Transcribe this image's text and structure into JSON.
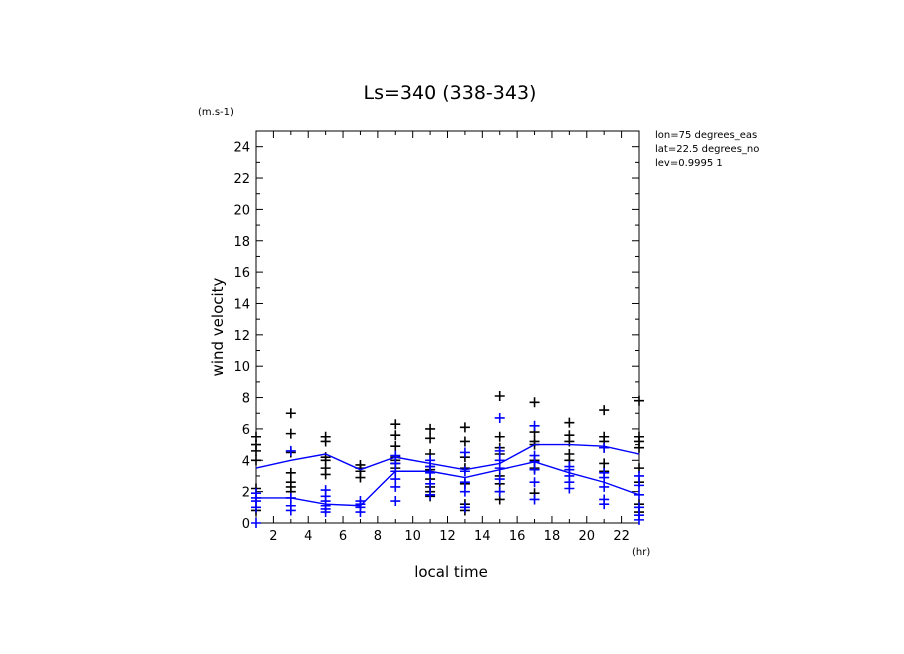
{
  "chart_data": {
    "type": "scatter",
    "title": "Ls=340 (338-343)",
    "xlabel": "local time",
    "ylabel": "wind velocity",
    "x_unit": "(hr)",
    "y_unit": "(m.s-1)",
    "xlim": [
      1,
      23
    ],
    "ylim": [
      0,
      25
    ],
    "x_ticks": [
      2,
      4,
      6,
      8,
      10,
      12,
      14,
      16,
      18,
      20,
      22
    ],
    "y_ticks": [
      0,
      2,
      4,
      6,
      8,
      10,
      12,
      14,
      16,
      18,
      20,
      22,
      24
    ],
    "info_lines": [
      "lon=75 degrees_eas",
      "lat=22.5 degrees_no",
      "lev=0.9995 1"
    ],
    "x": [
      1,
      3,
      5,
      7,
      9,
      11,
      13,
      15,
      17,
      19,
      21,
      23
    ],
    "series": [
      {
        "name": "black samples",
        "color": "#000000",
        "mean_line": [
          3.5,
          4.0,
          4.4,
          3.4,
          4.2,
          3.8,
          3.4,
          3.8,
          5.0,
          5.0,
          4.9,
          4.4
        ],
        "points": [
          [
            0.8,
            2.2,
            4.0,
            4.6,
            5.0,
            5.5
          ],
          [
            2.0,
            2.3,
            2.6,
            3.2,
            4.5,
            5.7,
            7.0
          ],
          [
            3.1,
            3.5,
            4.0,
            4.2,
            5.2,
            5.5
          ],
          [
            2.9,
            3.3,
            3.5,
            3.7
          ],
          [
            3.5,
            3.8,
            4.0,
            4.2,
            4.9,
            5.6,
            6.3
          ],
          [
            1.7,
            2.0,
            2.3,
            2.8,
            3.4,
            3.6,
            4.4,
            5.4,
            6.0
          ],
          [
            0.8,
            1.2,
            2.5,
            3.5,
            4.2,
            5.2,
            6.1
          ],
          [
            1.5,
            2.0,
            2.5,
            3.0,
            4.4,
            4.8,
            5.5,
            8.1
          ],
          [
            1.9,
            3.5,
            4.0,
            5.0,
            5.2,
            5.8,
            7.7
          ],
          [
            4.0,
            4.4,
            5.2,
            5.6,
            6.4
          ],
          [
            3.3,
            3.8,
            4.8,
            5.2,
            5.5,
            7.2
          ],
          [
            0.7,
            1.2,
            2.6,
            3.5,
            4.8,
            5.2,
            5.5,
            7.8
          ]
        ]
      },
      {
        "name": "blue samples",
        "color": "#0000ff",
        "mean_line": [
          1.6,
          1.6,
          1.2,
          1.1,
          3.3,
          3.3,
          2.9,
          3.4,
          3.9,
          3.2,
          2.6,
          1.8
        ],
        "points": [
          [
            0.0,
            1.0,
            1.4,
            1.6,
            1.9
          ],
          [
            0.8,
            1.1,
            1.6,
            4.6
          ],
          [
            0.7,
            0.9,
            1.1,
            1.4,
            1.7,
            2.1
          ],
          [
            0.7,
            1.0,
            1.2,
            1.4
          ],
          [
            1.4,
            2.3,
            2.8,
            3.3,
            3.8,
            4.3
          ],
          [
            1.8,
            2.5,
            3.2,
            3.6,
            4.0
          ],
          [
            1.0,
            2.0,
            2.6,
            3.3,
            4.5
          ],
          [
            2.0,
            2.8,
            3.5,
            4.0,
            4.6,
            6.7
          ],
          [
            1.5,
            2.6,
            3.4,
            3.9,
            4.3,
            6.2
          ],
          [
            2.2,
            2.6,
            3.0,
            3.4,
            3.6
          ],
          [
            1.2,
            1.5,
            2.3,
            2.9,
            3.2,
            4.8
          ],
          [
            0.2,
            0.5,
            1.0,
            1.8,
            2.4,
            3.0
          ]
        ]
      }
    ]
  }
}
